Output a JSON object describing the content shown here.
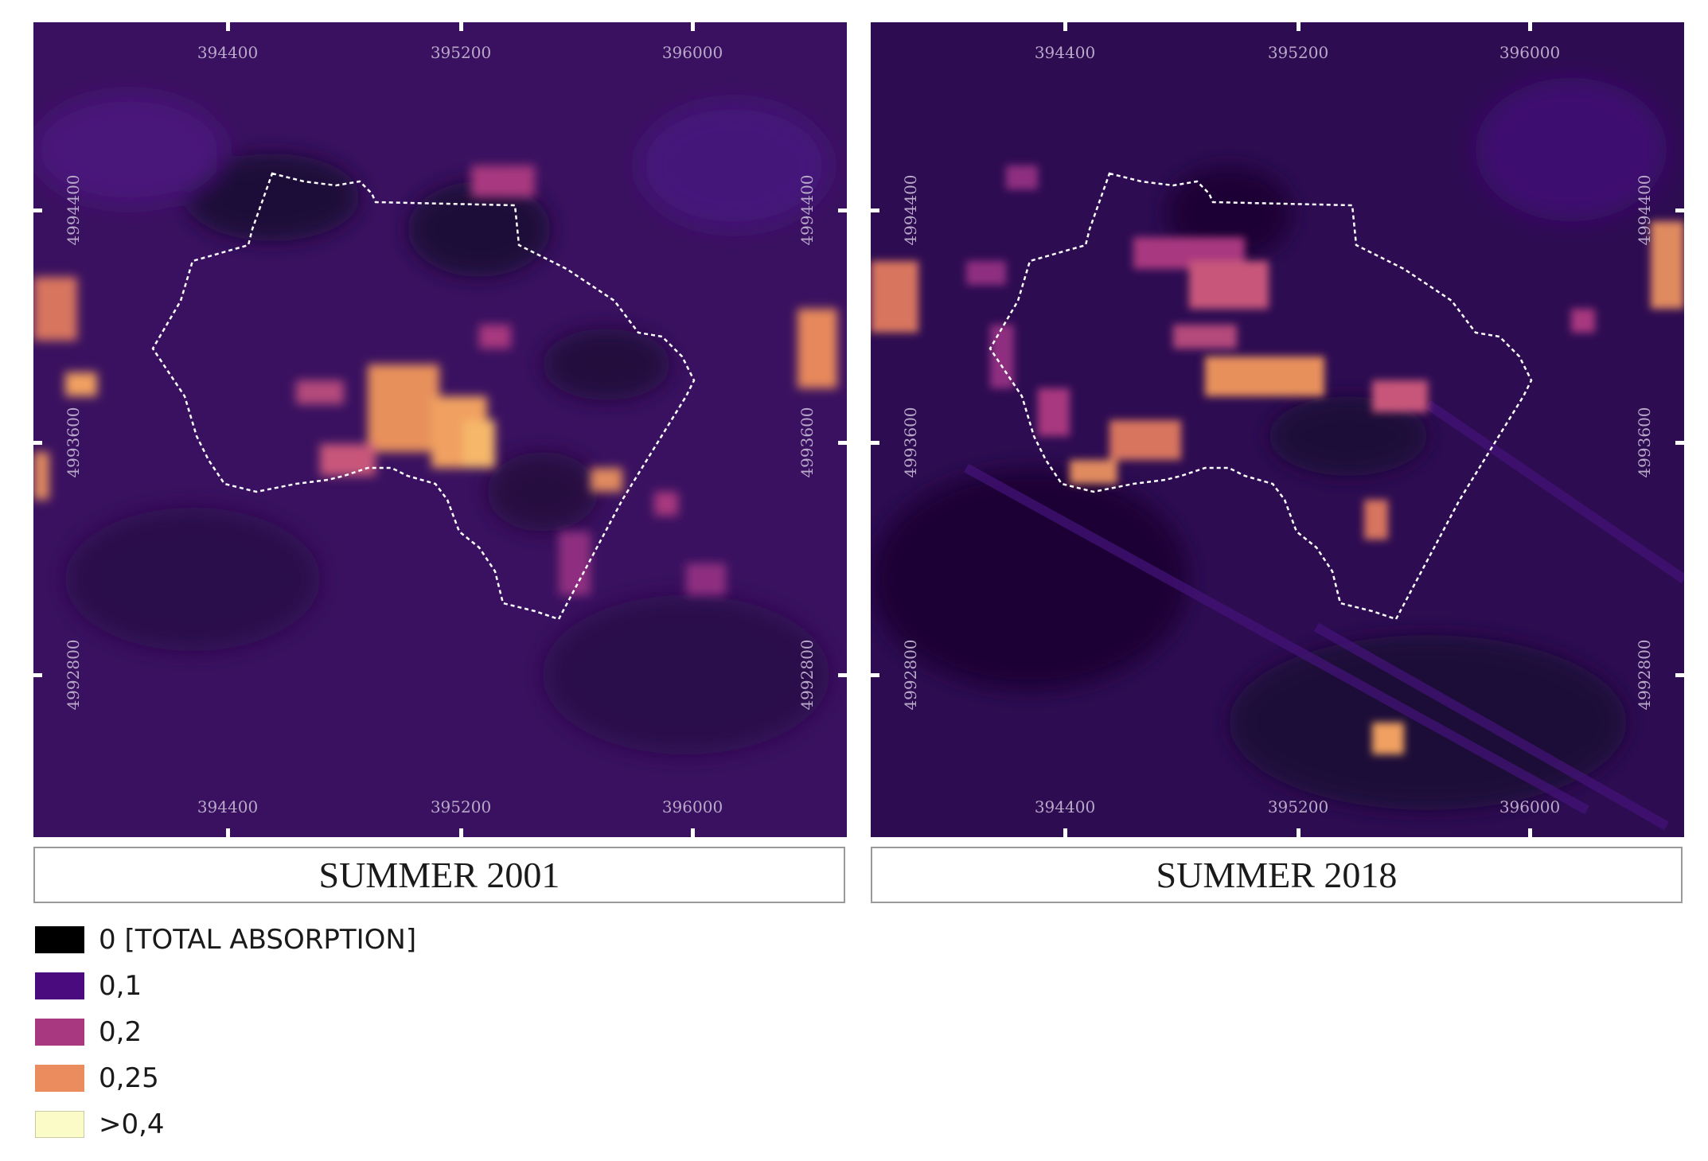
{
  "maps": [
    {
      "caption": "SUMMER 2001",
      "x_ticks": [
        "394400",
        "395200",
        "396000"
      ],
      "y_ticks": [
        "4994400",
        "4993600",
        "4992800"
      ]
    },
    {
      "caption": "SUMMER 2018",
      "x_ticks": [
        "394400",
        "395200",
        "396000"
      ],
      "y_ticks": [
        "4994400",
        "4993600",
        "4992800"
      ]
    }
  ],
  "legend": [
    {
      "label": "0 [TOTAL ABSORPTION]",
      "color": "#000000"
    },
    {
      "label": "0,1",
      "color": "#4a0b7e"
    },
    {
      "label": "0,2",
      "color": "#a8387f"
    },
    {
      "label": "0,25",
      "color": "#ea8c5e"
    },
    {
      "label": ">0,4",
      "color": "#fbfbc8"
    }
  ],
  "colors": {
    "background_2001": "#36105a",
    "background_2018": "#2a0b4c",
    "boundary_line": "#ffffff",
    "coordinate_text": "#b9a9c9"
  }
}
